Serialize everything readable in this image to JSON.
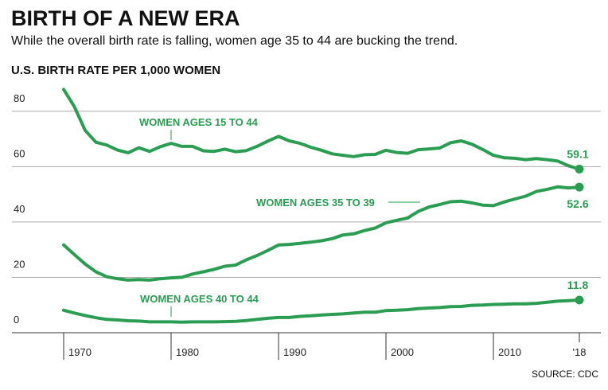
{
  "chart_data": {
    "type": "line",
    "title": "BIRTH OF A NEW ERA",
    "subtitle": "While the overall birth rate is falling, women age 35 to 44 are bucking the trend.",
    "y_label": "U.S. BIRTH RATE PER 1,000 WOMEN",
    "source": "SOURCE: CDC",
    "x": [
      1970,
      1971,
      1972,
      1973,
      1974,
      1975,
      1976,
      1977,
      1978,
      1979,
      1980,
      1981,
      1982,
      1983,
      1984,
      1985,
      1986,
      1987,
      1988,
      1989,
      1990,
      1991,
      1992,
      1993,
      1994,
      1995,
      1996,
      1997,
      1998,
      1999,
      2000,
      2001,
      2002,
      2003,
      2004,
      2005,
      2006,
      2007,
      2008,
      2009,
      2010,
      2011,
      2012,
      2013,
      2014,
      2015,
      2016,
      2017,
      2018
    ],
    "series": [
      {
        "name": "WOMEN AGES 15 TO 44",
        "color": "#2a9d52",
        "values": [
          87.9,
          81.6,
          73.1,
          68.8,
          67.8,
          66.0,
          65.0,
          66.8,
          65.5,
          67.2,
          68.4,
          67.3,
          67.3,
          65.7,
          65.5,
          66.3,
          65.4,
          65.8,
          67.3,
          69.2,
          70.9,
          69.3,
          68.4,
          67.0,
          65.9,
          64.6,
          64.1,
          63.6,
          64.3,
          64.4,
          65.9,
          65.1,
          64.8,
          66.1,
          66.4,
          66.7,
          68.6,
          69.3,
          68.1,
          66.2,
          64.1,
          63.2,
          63.0,
          62.5,
          62.9,
          62.5,
          62.0,
          60.3,
          59.1
        ]
      },
      {
        "name": "WOMEN AGES 35 TO 39",
        "color": "#2a9d52",
        "values": [
          31.7,
          28.2,
          24.8,
          22.0,
          20.2,
          19.5,
          19.0,
          19.2,
          19.0,
          19.5,
          19.8,
          20.0,
          21.2,
          22.0,
          22.9,
          24.0,
          24.4,
          26.3,
          27.9,
          29.7,
          31.7,
          31.9,
          32.3,
          32.7,
          33.2,
          34.0,
          35.3,
          35.7,
          36.9,
          37.8,
          39.7,
          40.6,
          41.4,
          43.8,
          45.4,
          46.3,
          47.3,
          47.5,
          46.9,
          46.1,
          45.9,
          47.2,
          48.3,
          49.3,
          51.0,
          51.8,
          52.7,
          52.3,
          52.6
        ]
      },
      {
        "name": "WOMEN AGES 40 TO 44",
        "color": "#2a9d52",
        "values": [
          8.1,
          7.1,
          6.2,
          5.4,
          4.8,
          4.6,
          4.3,
          4.2,
          3.9,
          3.9,
          3.9,
          3.8,
          3.9,
          3.9,
          3.9,
          4.0,
          4.1,
          4.4,
          4.8,
          5.2,
          5.5,
          5.5,
          5.9,
          6.1,
          6.4,
          6.6,
          6.8,
          7.1,
          7.4,
          7.4,
          8.0,
          8.1,
          8.3,
          8.7,
          8.9,
          9.1,
          9.4,
          9.5,
          9.9,
          10.0,
          10.2,
          10.3,
          10.4,
          10.4,
          10.6,
          11.0,
          11.4,
          11.6,
          11.8
        ]
      }
    ],
    "xlim": [
      1965,
      2020
    ],
    "xticks": [
      1970,
      1980,
      1990,
      2000,
      2010,
      {
        "value": 2018,
        "label": "'18"
      }
    ],
    "ylim": [
      0,
      90
    ],
    "yticks": [
      0,
      20,
      40,
      60,
      80
    ],
    "grid": true
  }
}
